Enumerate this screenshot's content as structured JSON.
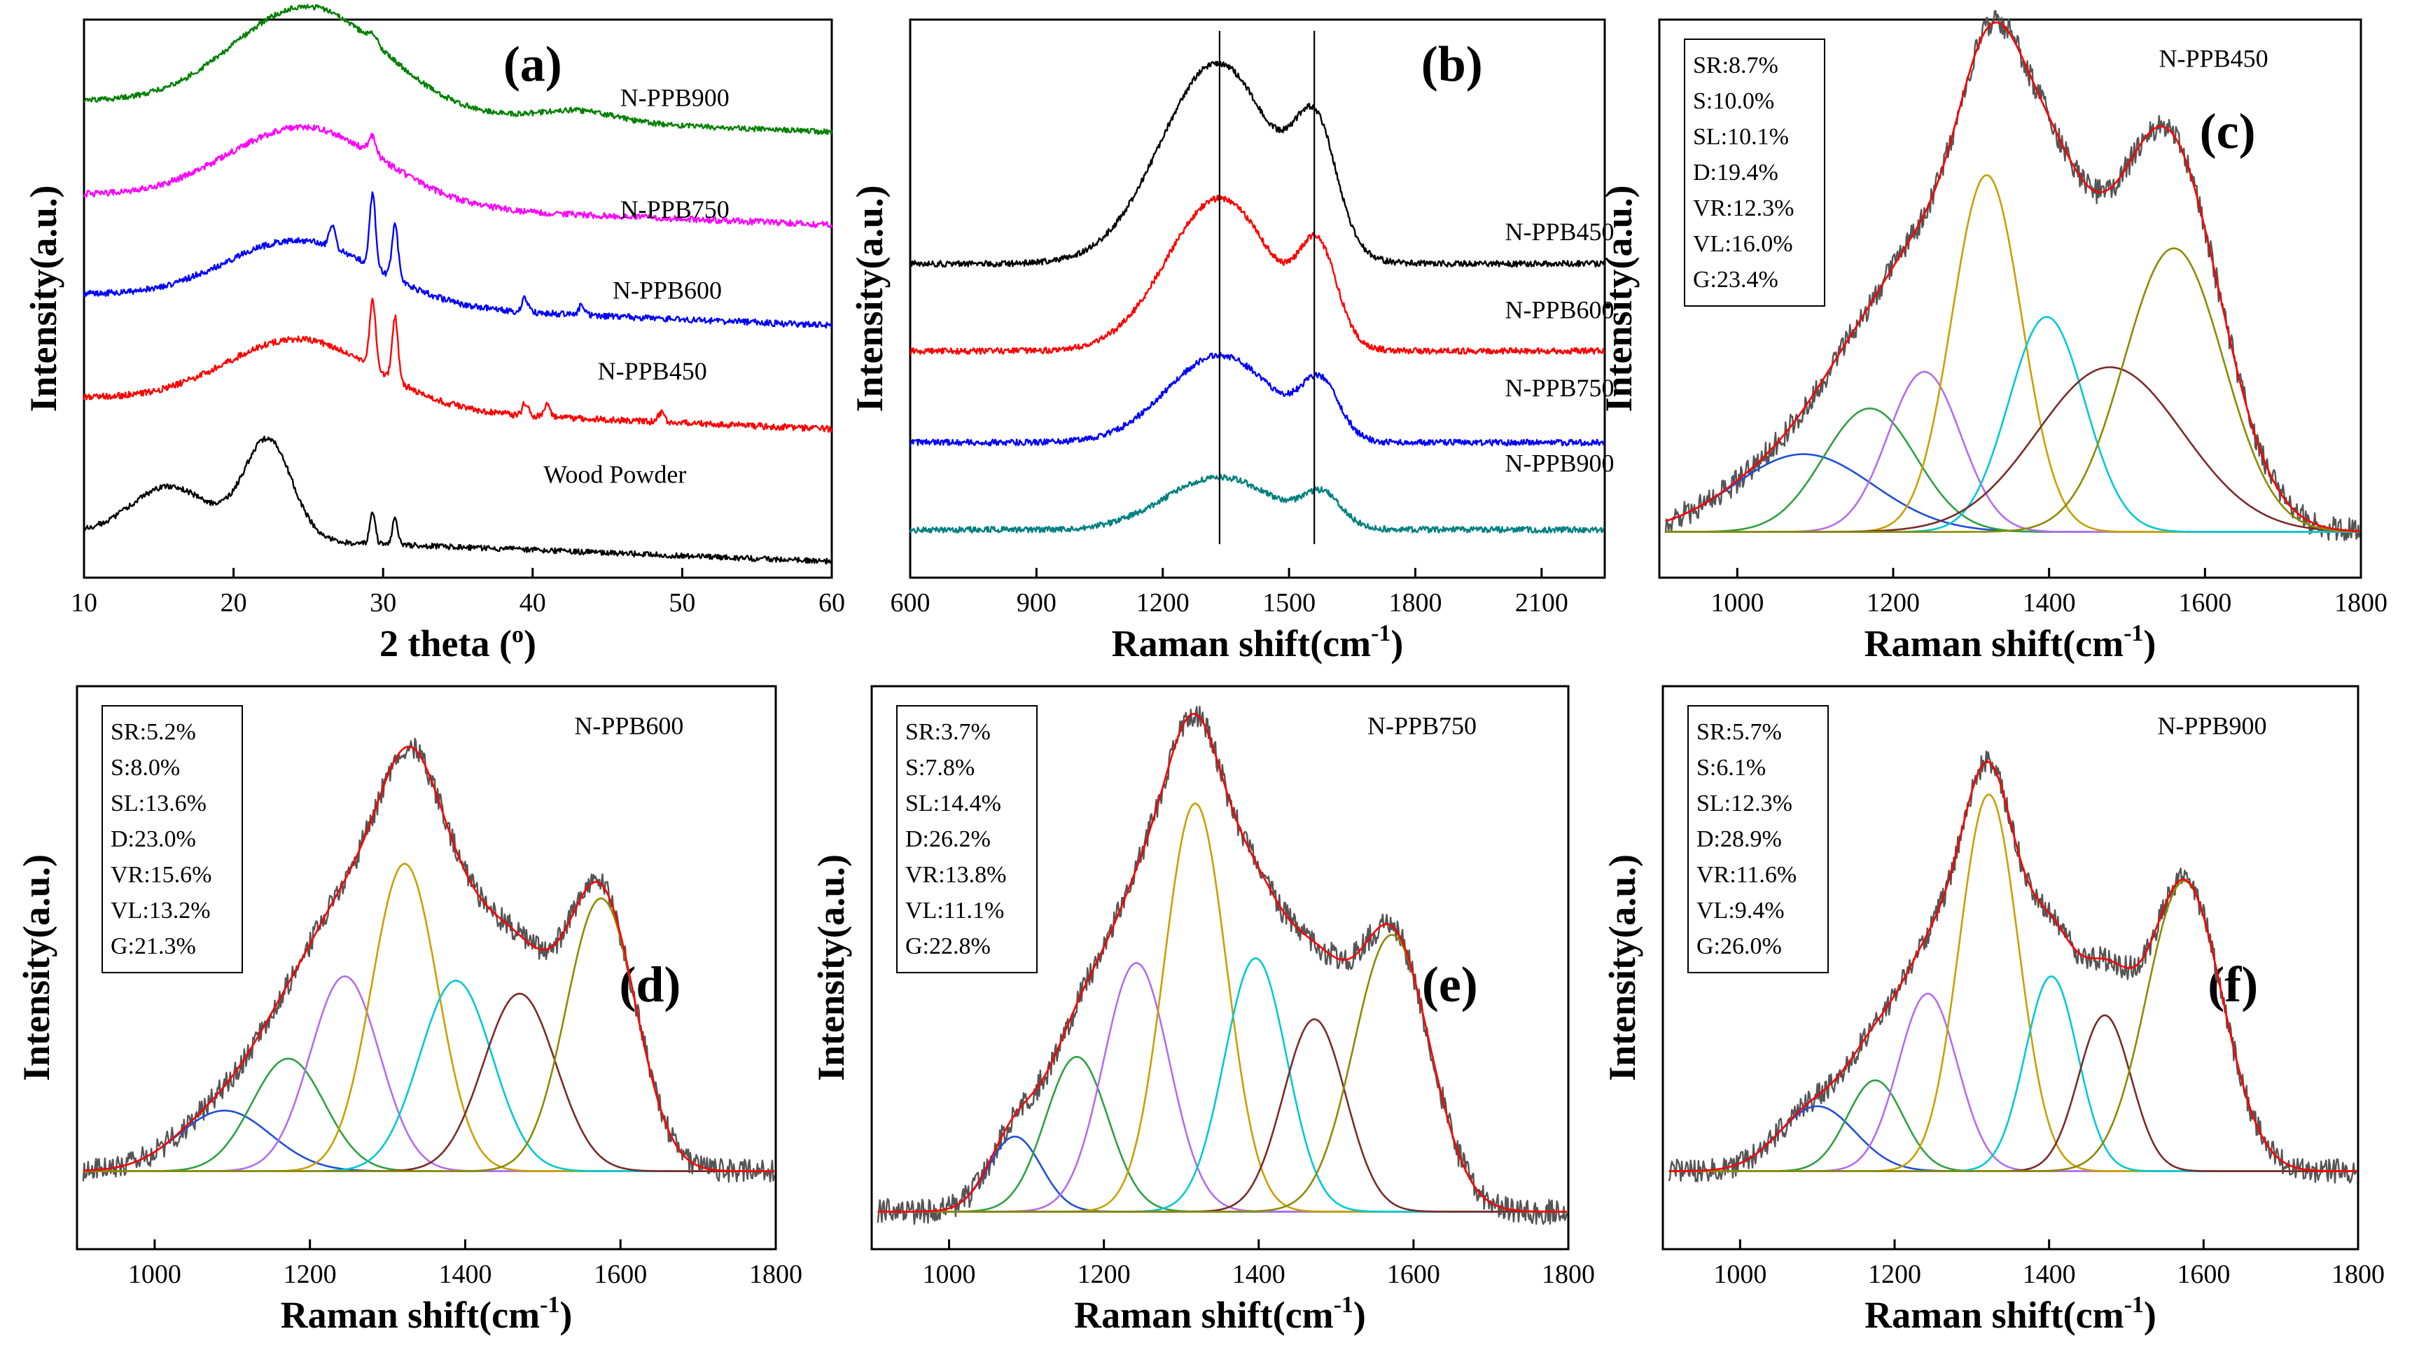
{
  "chart_data": [
    {
      "id": "a",
      "type": "line",
      "panel_label": "(a)",
      "xlabel": "2 theta",
      "xlabel_unit": "o",
      "ylabel": "Intensity(a.u.)",
      "xlim": [
        10,
        60
      ],
      "xticks": [
        10,
        20,
        30,
        40,
        50,
        60
      ],
      "ylim": [
        0,
        6.2
      ],
      "series": [
        {
          "name": "Wood Powder",
          "color": "#000000",
          "offset": 0.0,
          "noise": 0.03,
          "baseline": [
            0.5,
            0.18
          ],
          "peaks": [
            {
              "c": 15.8,
              "w": 2.6,
              "h": 0.55
            },
            {
              "c": 22.3,
              "w": 1.6,
              "h": 1.1
            },
            {
              "c": 29.3,
              "w": 0.18,
              "h": 0.35
            },
            {
              "c": 30.8,
              "w": 0.18,
              "h": 0.3
            }
          ]
        },
        {
          "name": "N-PPB450",
          "color": "#ff0000",
          "offset": 1.45,
          "noise": 0.035,
          "baseline": [
            0.55,
            0.2
          ],
          "peaks": [
            {
              "c": 24.5,
              "w": 5.0,
              "h": 0.75
            },
            {
              "c": 29.3,
              "w": 0.2,
              "h": 0.75
            },
            {
              "c": 30.8,
              "w": 0.2,
              "h": 0.7
            },
            {
              "c": 39.5,
              "w": 0.18,
              "h": 0.15
            },
            {
              "c": 41.0,
              "w": 0.18,
              "h": 0.15
            },
            {
              "c": 48.6,
              "w": 0.2,
              "h": 0.1
            }
          ]
        },
        {
          "name": "N-PPB600",
          "color": "#0000ff",
          "offset": 2.6,
          "noise": 0.035,
          "baseline": [
            0.55,
            0.2
          ],
          "peaks": [
            {
              "c": 24.5,
              "w": 5.0,
              "h": 0.7
            },
            {
              "c": 26.6,
              "w": 0.2,
              "h": 0.25
            },
            {
              "c": 29.3,
              "w": 0.2,
              "h": 0.8
            },
            {
              "c": 30.8,
              "w": 0.2,
              "h": 0.6
            },
            {
              "c": 39.5,
              "w": 0.2,
              "h": 0.15
            },
            {
              "c": 43.3,
              "w": 0.2,
              "h": 0.12
            }
          ]
        },
        {
          "name": "N-PPB750",
          "color": "#ff00ff",
          "offset": 3.7,
          "noise": 0.035,
          "baseline": [
            0.55,
            0.22
          ],
          "peaks": [
            {
              "c": 24.8,
              "w": 5.2,
              "h": 0.85
            },
            {
              "c": 29.3,
              "w": 0.25,
              "h": 0.2
            }
          ]
        },
        {
          "name": "N-PPB900",
          "color": "#008000",
          "offset": 4.75,
          "noise": 0.03,
          "baseline": [
            0.55,
            0.2
          ],
          "peaks": [
            {
              "c": 25.0,
              "w": 5.0,
              "h": 1.15
            },
            {
              "c": 29.3,
              "w": 0.3,
              "h": 0.1
            },
            {
              "c": 43.0,
              "w": 2.5,
              "h": 0.12
            }
          ]
        }
      ]
    },
    {
      "id": "b",
      "type": "line",
      "panel_label": "(b)",
      "xlabel": "Raman shift(cm",
      "xlabel_sup": "-1",
      "xlabel_end": ")",
      "ylabel": "Intensity(a.u.)",
      "xlim": [
        600,
        2250
      ],
      "xticks": [
        600,
        900,
        1200,
        1500,
        1800,
        2100
      ],
      "ylim": [
        0,
        6.4
      ],
      "reference_lines_x": [
        1335,
        1560
      ],
      "series": [
        {
          "name": "N-PPB900",
          "color": "#008080",
          "offset": 0.55,
          "noise": 0.035,
          "peaks": [
            {
              "c": 1335,
              "w": 130,
              "h": 0.6
            },
            {
              "c": 1580,
              "w": 45,
              "h": 0.35
            }
          ]
        },
        {
          "name": "N-PPB750",
          "color": "#0000ff",
          "offset": 1.55,
          "noise": 0.035,
          "peaks": [
            {
              "c": 1335,
              "w": 125,
              "h": 1.0
            },
            {
              "c": 1575,
              "w": 45,
              "h": 0.6
            }
          ]
        },
        {
          "name": "N-PPB600",
          "color": "#ff0000",
          "offset": 2.6,
          "noise": 0.035,
          "peaks": [
            {
              "c": 1335,
              "w": 125,
              "h": 1.75
            },
            {
              "c": 1570,
              "w": 45,
              "h": 1.0
            }
          ]
        },
        {
          "name": "N-PPB450",
          "color": "#000000",
          "offset": 3.6,
          "noise": 0.035,
          "peaks": [
            {
              "c": 1330,
              "w": 135,
              "h": 2.3
            },
            {
              "c": 1565,
              "w": 50,
              "h": 1.25
            }
          ]
        }
      ]
    },
    {
      "id": "c",
      "type": "line",
      "panel_label": "(c)",
      "title": "N-PPB450",
      "xlabel": "Raman shift(cm",
      "xlabel_sup": "-1",
      "xlabel_end": ")",
      "ylabel": "Intensity(a.u.)",
      "xlim": [
        900,
        1800
      ],
      "xticks": [
        1000,
        1200,
        1400,
        1600,
        1800
      ],
      "ylim": [
        -0.1,
        1.12
      ],
      "stats": [
        "SR:8.7%",
        "S:10.0%",
        "SL:10.1%",
        "D:19.4%",
        "VR:12.3%",
        "VL:16.0%",
        "G:23.4%"
      ],
      "fit_bands": [
        {
          "name": "SR",
          "center": 1085,
          "fwhm": 210,
          "height": 0.17,
          "color": "#1f4fd6"
        },
        {
          "name": "S",
          "center": 1170,
          "fwhm": 140,
          "height": 0.27,
          "color": "#2ea043"
        },
        {
          "name": "SL",
          "center": 1240,
          "fwhm": 110,
          "height": 0.35,
          "color": "#b46cf0"
        },
        {
          "name": "D",
          "center": 1320,
          "fwhm": 105,
          "height": 0.78,
          "color": "#c8a000"
        },
        {
          "name": "VR",
          "center": 1397,
          "fwhm": 115,
          "height": 0.47,
          "color": "#00c8d4"
        },
        {
          "name": "VL",
          "center": 1478,
          "fwhm": 220,
          "height": 0.36,
          "color": "#7a2a2a"
        },
        {
          "name": "G",
          "center": 1560,
          "fwhm": 150,
          "height": 0.62,
          "color": "#8b8b00"
        }
      ]
    },
    {
      "id": "d",
      "type": "line",
      "panel_label": "(d)",
      "title": "N-PPB600",
      "xlabel": "Raman shift(cm",
      "xlabel_sup": "-1",
      "xlabel_end": ")",
      "ylabel": "Intensity(a.u.)",
      "xlim": [
        900,
        1800
      ],
      "xticks": [
        1000,
        1200,
        1400,
        1600,
        1800
      ],
      "ylim": [
        -0.18,
        1.12
      ],
      "stats": [
        "SR:5.2%",
        "S:8.0%",
        "SL:13.6%",
        "D:23.0%",
        "VR:15.6%",
        "VL:13.2%",
        "G:21.3%"
      ],
      "fit_bands": [
        {
          "name": "SR",
          "center": 1090,
          "fwhm": 140,
          "height": 0.14,
          "color": "#1f4fd6"
        },
        {
          "name": "S",
          "center": 1172,
          "fwhm": 110,
          "height": 0.26,
          "color": "#2ea043"
        },
        {
          "name": "SL",
          "center": 1245,
          "fwhm": 105,
          "height": 0.45,
          "color": "#b46cf0"
        },
        {
          "name": "D",
          "center": 1322,
          "fwhm": 100,
          "height": 0.71,
          "color": "#c8a000"
        },
        {
          "name": "VR",
          "center": 1388,
          "fwhm": 110,
          "height": 0.44,
          "color": "#00c8d4"
        },
        {
          "name": "VL",
          "center": 1470,
          "fwhm": 110,
          "height": 0.41,
          "color": "#7a2a2a"
        },
        {
          "name": "G",
          "center": 1575,
          "fwhm": 105,
          "height": 0.63,
          "color": "#8b8b00"
        }
      ]
    },
    {
      "id": "e",
      "type": "line",
      "panel_label": "(e)",
      "title": "N-PPB750",
      "xlabel": "Raman shift(cm",
      "xlabel_sup": "-1",
      "xlabel_end": ")",
      "ylabel": "Intensity(a.u.)",
      "xlim": [
        900,
        1800
      ],
      "xticks": [
        1000,
        1200,
        1400,
        1600,
        1800
      ],
      "ylim": [
        -0.08,
        1.12
      ],
      "stats": [
        "SR:3.7%",
        "S:7.8%",
        "SL:14.4%",
        "D:26.2%",
        "VR:13.8%",
        "VL:11.1%",
        "G:22.8%"
      ],
      "fit_bands": [
        {
          "name": "SR",
          "center": 1085,
          "fwhm": 80,
          "height": 0.16,
          "color": "#1f4fd6"
        },
        {
          "name": "S",
          "center": 1165,
          "fwhm": 95,
          "height": 0.33,
          "color": "#2ea043"
        },
        {
          "name": "SL",
          "center": 1242,
          "fwhm": 100,
          "height": 0.53,
          "color": "#b46cf0"
        },
        {
          "name": "D",
          "center": 1318,
          "fwhm": 95,
          "height": 0.87,
          "color": "#c8a000"
        },
        {
          "name": "VR",
          "center": 1396,
          "fwhm": 95,
          "height": 0.54,
          "color": "#00c8d4"
        },
        {
          "name": "VL",
          "center": 1472,
          "fwhm": 95,
          "height": 0.41,
          "color": "#7a2a2a"
        },
        {
          "name": "G",
          "center": 1572,
          "fwhm": 115,
          "height": 0.59,
          "color": "#8b8b00"
        }
      ]
    },
    {
      "id": "f",
      "type": "line",
      "panel_label": "(f)",
      "title": "N-PPB900",
      "xlabel": "Raman shift(cm",
      "xlabel_sup": "-1",
      "xlabel_end": ")",
      "ylabel": "Intensity(a.u.)",
      "xlim": [
        900,
        1800
      ],
      "xticks": [
        1000,
        1200,
        1400,
        1600,
        1800
      ],
      "ylim": [
        -0.18,
        1.12
      ],
      "stats": [
        "SR:5.7%",
        "S:6.1%",
        "SL:12.3%",
        "D:28.9%",
        "VR:11.6%",
        "VL:9.4%",
        "G:26.0%"
      ],
      "fit_bands": [
        {
          "name": "SR",
          "center": 1100,
          "fwhm": 115,
          "height": 0.15,
          "color": "#1f4fd6"
        },
        {
          "name": "S",
          "center": 1175,
          "fwhm": 85,
          "height": 0.21,
          "color": "#2ea043"
        },
        {
          "name": "SL",
          "center": 1243,
          "fwhm": 90,
          "height": 0.41,
          "color": "#b46cf0"
        },
        {
          "name": "D",
          "center": 1322,
          "fwhm": 90,
          "height": 0.87,
          "color": "#c8a000"
        },
        {
          "name": "VR",
          "center": 1403,
          "fwhm": 80,
          "height": 0.45,
          "color": "#00c8d4"
        },
        {
          "name": "VL",
          "center": 1472,
          "fwhm": 80,
          "height": 0.36,
          "color": "#7a2a2a"
        },
        {
          "name": "G",
          "center": 1575,
          "fwhm": 115,
          "height": 0.67,
          "color": "#8b8b00"
        }
      ]
    }
  ],
  "fit_curve_color": "#ff0000",
  "raw_curve_color": "#555555"
}
